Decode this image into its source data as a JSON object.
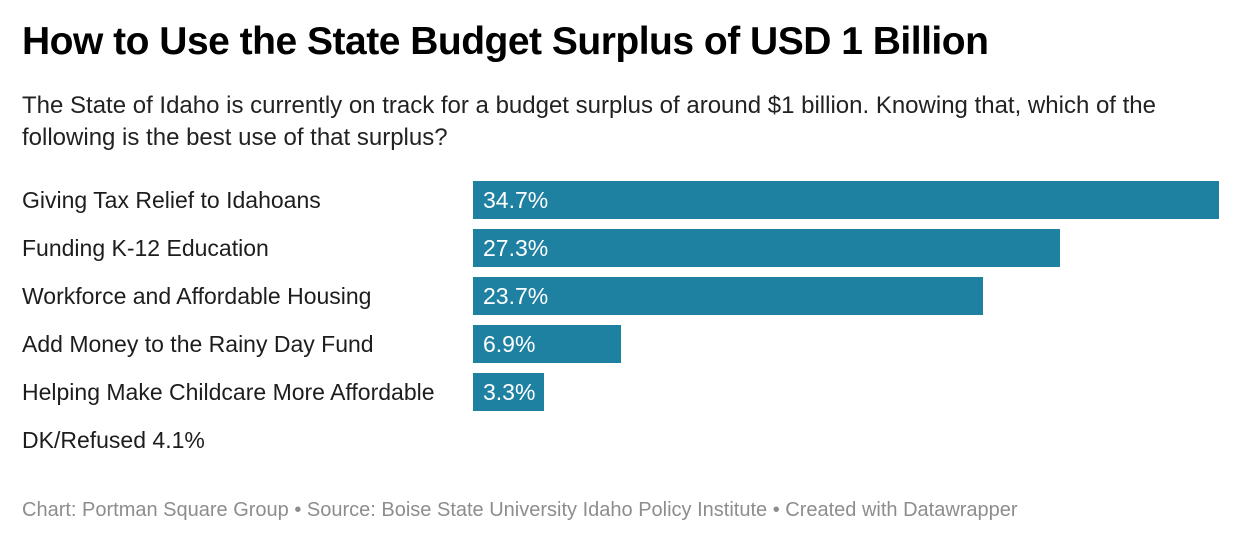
{
  "header": {
    "title": "How to Use the State Budget Surplus of USD 1 Billion",
    "subtitle": "The State of Idaho is currently on track for a budget surplus of around $1 billion. Knowing that, which of the following is the best use of that surplus?"
  },
  "chart_data": {
    "type": "bar",
    "orientation": "horizontal",
    "title": "How to Use the State Budget Surplus of USD 1 Billion",
    "subtitle": "The State of Idaho is currently on track for a budget surplus of around $1 billion. Knowing that, which of the following is the best use of that surplus?",
    "unit": "%",
    "categories": [
      "Giving Tax Relief to Idahoans",
      "Funding K-12 Education",
      "Workforce and Affordable Housing",
      "Add Money to the Rainy Day Fund",
      "Helping Make Childcare More Affordable",
      "DK/Refused"
    ],
    "values": [
      34.7,
      27.3,
      23.7,
      6.9,
      3.3,
      4.1
    ],
    "xlim": [
      0,
      34.7
    ],
    "grid": false,
    "legend": "none",
    "axes_hidden": true,
    "bar_color": "#1f81a1",
    "rows": [
      {
        "label": "Giving Tax Relief to Idahoans",
        "value": 34.7,
        "value_label": "34.7%",
        "bar": true
      },
      {
        "label": "Funding K-12 Education",
        "value": 27.3,
        "value_label": "27.3%",
        "bar": true
      },
      {
        "label": "Workforce and Affordable Housing",
        "value": 23.7,
        "value_label": "23.7%",
        "bar": true
      },
      {
        "label": "Add Money to the Rainy Day Fund",
        "value": 6.9,
        "value_label": "6.9%",
        "bar": true
      },
      {
        "label": "Helping Make Childcare More Affordable",
        "value": 3.3,
        "value_label": "3.3%",
        "bar": true
      },
      {
        "label": "DK/Refused",
        "value": 4.1,
        "value_label": "4.1%",
        "bar": false
      }
    ]
  },
  "colors": {
    "bar": "#1f81a1",
    "bar_value_text": "#ffffff",
    "title_text": "#000000",
    "body_text": "#1d1d1d",
    "footer_text": "#8d8d8d",
    "background": "#ffffff"
  },
  "footer": {
    "text": "Chart: Portman Square Group • Source: Boise State University Idaho Policy Institute • Created with Datawrapper"
  }
}
